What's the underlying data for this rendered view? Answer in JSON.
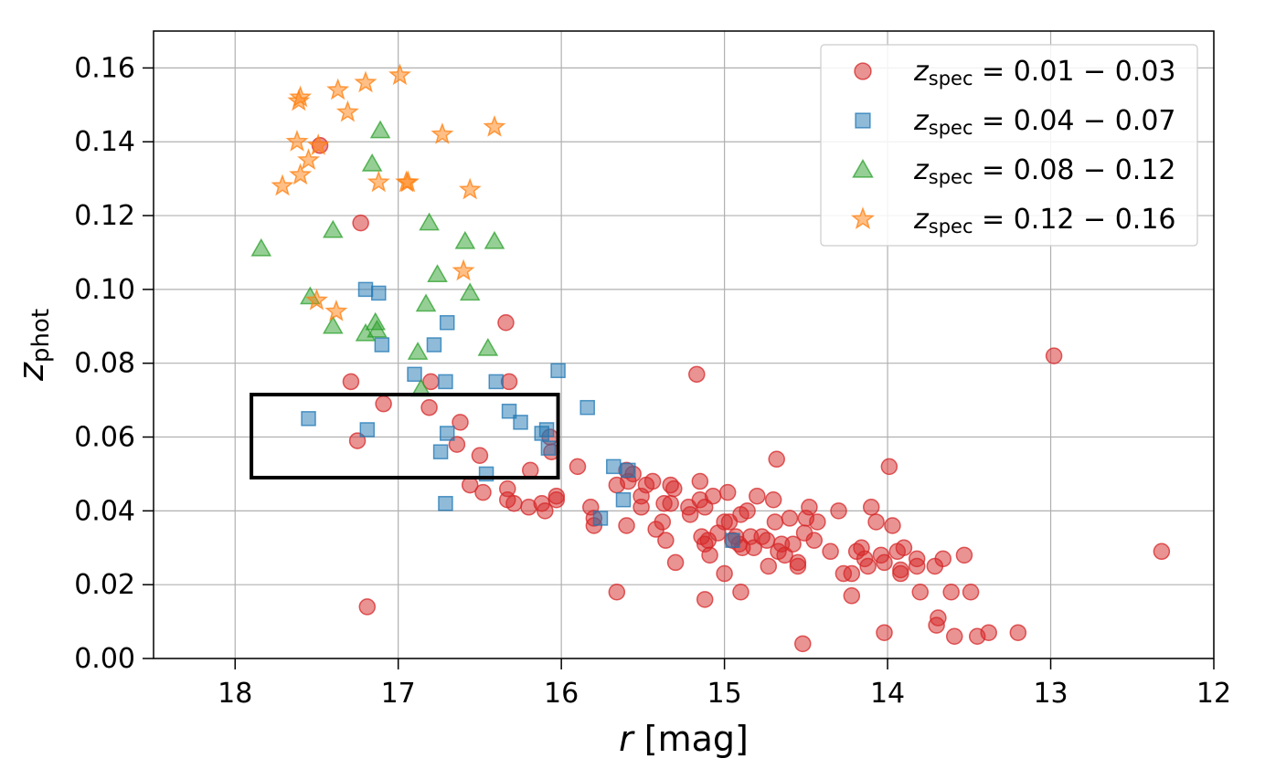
{
  "chart_data": {
    "type": "scatter",
    "xlabel_var": "r",
    "xlabel_unit": "[mag]",
    "ylabel_var": "z",
    "ylabel_sub": "phot",
    "xlim": [
      18.5,
      12
    ],
    "ylim": [
      0,
      0.17
    ],
    "x_inverted": true,
    "grid": true,
    "legend_position": "top-right",
    "xticks": [
      "18",
      "17",
      "16",
      "15",
      "14",
      "13",
      "12"
    ],
    "yticks": [
      "0.00",
      "0.02",
      "0.04",
      "0.06",
      "0.08",
      "0.10",
      "0.12",
      "0.14",
      "0.16"
    ],
    "highlight_box": {
      "x0": 17.9,
      "x1": 16.02,
      "y0": 0.049,
      "y1": 0.0715
    },
    "series": [
      {
        "name_var": "z",
        "name_sub": "spec",
        "name_range": " = 0.01 − 0.03",
        "marker": "circle",
        "color": "#d62728",
        "points": [
          [
            17.23,
            0.118
          ],
          [
            17.48,
            0.139
          ],
          [
            16.34,
            0.091
          ],
          [
            17.29,
            0.075
          ],
          [
            16.32,
            0.075
          ],
          [
            16.8,
            0.075
          ],
          [
            17.09,
            0.069
          ],
          [
            16.81,
            0.068
          ],
          [
            16.62,
            0.064
          ],
          [
            17.25,
            0.059
          ],
          [
            16.64,
            0.058
          ],
          [
            16.5,
            0.055
          ],
          [
            16.07,
            0.06
          ],
          [
            16.06,
            0.056
          ],
          [
            16.56,
            0.047
          ],
          [
            16.48,
            0.045
          ],
          [
            16.19,
            0.051
          ],
          [
            16.33,
            0.046
          ],
          [
            16.29,
            0.042
          ],
          [
            16.33,
            0.043
          ],
          [
            16.2,
            0.041
          ],
          [
            16.12,
            0.042
          ],
          [
            16.1,
            0.04
          ],
          [
            16.03,
            0.044
          ],
          [
            16.03,
            0.043
          ],
          [
            17.19,
            0.014
          ],
          [
            15.9,
            0.052
          ],
          [
            15.66,
            0.047
          ],
          [
            15.59,
            0.048
          ],
          [
            15.6,
            0.051
          ],
          [
            15.48,
            0.047
          ],
          [
            15.51,
            0.044
          ],
          [
            15.51,
            0.041
          ],
          [
            15.44,
            0.048
          ],
          [
            15.31,
            0.046
          ],
          [
            15.37,
            0.042
          ],
          [
            15.38,
            0.037
          ],
          [
            15.36,
            0.032
          ],
          [
            15.42,
            0.035
          ],
          [
            15.33,
            0.047
          ],
          [
            15.33,
            0.042
          ],
          [
            15.3,
            0.026
          ],
          [
            15.22,
            0.041
          ],
          [
            15.21,
            0.039
          ],
          [
            15.15,
            0.043
          ],
          [
            15.15,
            0.048
          ],
          [
            15.12,
            0.041
          ],
          [
            15.14,
            0.033
          ],
          [
            15.12,
            0.031
          ],
          [
            15.09,
            0.028
          ],
          [
            15.07,
            0.044
          ],
          [
            15.04,
            0.034
          ],
          [
            15.0,
            0.037
          ],
          [
            14.98,
            0.045
          ],
          [
            14.97,
            0.037
          ],
          [
            14.95,
            0.032
          ],
          [
            14.93,
            0.033
          ],
          [
            14.91,
            0.031
          ],
          [
            14.89,
            0.03
          ],
          [
            14.9,
            0.039
          ],
          [
            14.86,
            0.04
          ],
          [
            14.84,
            0.033
          ],
          [
            14.82,
            0.03
          ],
          [
            14.8,
            0.044
          ],
          [
            14.77,
            0.033
          ],
          [
            14.74,
            0.032
          ],
          [
            14.73,
            0.025
          ],
          [
            14.7,
            0.043
          ],
          [
            14.69,
            0.037
          ],
          [
            14.67,
            0.029
          ],
          [
            14.65,
            0.031
          ],
          [
            14.63,
            0.028
          ],
          [
            14.6,
            0.038
          ],
          [
            14.58,
            0.031
          ],
          [
            14.55,
            0.026
          ],
          [
            14.55,
            0.025
          ],
          [
            14.51,
            0.034
          ],
          [
            14.5,
            0.038
          ],
          [
            14.48,
            0.041
          ],
          [
            14.45,
            0.032
          ],
          [
            14.43,
            0.037
          ],
          [
            14.35,
            0.029
          ],
          [
            14.3,
            0.04
          ],
          [
            14.27,
            0.023
          ],
          [
            14.22,
            0.023
          ],
          [
            14.22,
            0.017
          ],
          [
            14.19,
            0.029
          ],
          [
            14.16,
            0.03
          ],
          [
            14.14,
            0.027
          ],
          [
            14.12,
            0.025
          ],
          [
            14.1,
            0.041
          ],
          [
            14.07,
            0.037
          ],
          [
            14.04,
            0.028
          ],
          [
            14.02,
            0.026
          ],
          [
            13.99,
            0.052
          ],
          [
            13.97,
            0.036
          ],
          [
            13.94,
            0.029
          ],
          [
            13.92,
            0.023
          ],
          [
            13.92,
            0.024
          ],
          [
            13.9,
            0.03
          ],
          [
            13.82,
            0.027
          ],
          [
            13.82,
            0.025
          ],
          [
            13.8,
            0.018
          ],
          [
            13.71,
            0.025
          ],
          [
            13.69,
            0.011
          ],
          [
            13.7,
            0.009
          ],
          [
            13.66,
            0.027
          ],
          [
            13.61,
            0.018
          ],
          [
            13.59,
            0.006
          ],
          [
            13.53,
            0.028
          ],
          [
            13.49,
            0.018
          ],
          [
            13.45,
            0.006
          ],
          [
            13.38,
            0.007
          ],
          [
            13.2,
            0.007
          ],
          [
            15.82,
            0.041
          ],
          [
            15.8,
            0.038
          ],
          [
            15.8,
            0.036
          ],
          [
            15.66,
            0.018
          ],
          [
            15.6,
            0.036
          ],
          [
            15.56,
            0.05
          ],
          [
            15.17,
            0.077
          ],
          [
            15.12,
            0.016
          ],
          [
            15.1,
            0.032
          ],
          [
            15.0,
            0.023
          ],
          [
            14.9,
            0.018
          ],
          [
            14.68,
            0.054
          ],
          [
            14.52,
            0.004
          ],
          [
            14.02,
            0.007
          ],
          [
            12.98,
            0.082
          ],
          [
            12.32,
            0.029
          ]
        ]
      },
      {
        "name_var": "z",
        "name_sub": "spec",
        "name_range": " = 0.04 − 0.07",
        "marker": "square",
        "color": "#1f77b4",
        "points": [
          [
            17.2,
            0.1
          ],
          [
            17.12,
            0.099
          ],
          [
            16.7,
            0.091
          ],
          [
            17.1,
            0.085
          ],
          [
            16.78,
            0.085
          ],
          [
            16.9,
            0.077
          ],
          [
            16.71,
            0.075
          ],
          [
            16.4,
            0.075
          ],
          [
            16.02,
            0.078
          ],
          [
            17.55,
            0.065
          ],
          [
            17.19,
            0.062
          ],
          [
            16.7,
            0.061
          ],
          [
            16.74,
            0.056
          ],
          [
            16.32,
            0.067
          ],
          [
            16.25,
            0.064
          ],
          [
            16.12,
            0.061
          ],
          [
            16.09,
            0.062
          ],
          [
            16.46,
            0.05
          ],
          [
            16.08,
            0.057
          ],
          [
            15.84,
            0.068
          ],
          [
            15.68,
            0.052
          ],
          [
            15.59,
            0.051
          ],
          [
            16.71,
            0.042
          ],
          [
            15.62,
            0.043
          ],
          [
            15.76,
            0.038
          ],
          [
            14.95,
            0.032
          ]
        ]
      },
      {
        "name_var": "z",
        "name_sub": "spec",
        "name_range": " = 0.08 − 0.12",
        "marker": "triangle",
        "color": "#2ca02c",
        "points": [
          [
            17.84,
            0.111
          ],
          [
            17.4,
            0.116
          ],
          [
            17.11,
            0.143
          ],
          [
            17.16,
            0.134
          ],
          [
            16.81,
            0.118
          ],
          [
            16.59,
            0.113
          ],
          [
            16.41,
            0.113
          ],
          [
            16.76,
            0.104
          ],
          [
            16.56,
            0.099
          ],
          [
            17.54,
            0.098
          ],
          [
            16.83,
            0.096
          ],
          [
            17.14,
            0.091
          ],
          [
            17.2,
            0.088
          ],
          [
            17.13,
            0.089
          ],
          [
            17.4,
            0.09
          ],
          [
            16.88,
            0.083
          ],
          [
            16.45,
            0.084
          ],
          [
            16.86,
            0.073
          ]
        ]
      },
      {
        "name_var": "z",
        "name_sub": "spec",
        "name_range": " = 0.12 − 0.16",
        "marker": "star",
        "color": "#ff7f0e",
        "points": [
          [
            17.6,
            0.152
          ],
          [
            17.61,
            0.151
          ],
          [
            17.37,
            0.154
          ],
          [
            17.2,
            0.156
          ],
          [
            16.99,
            0.158
          ],
          [
            17.31,
            0.148
          ],
          [
            16.41,
            0.144
          ],
          [
            16.73,
            0.142
          ],
          [
            17.62,
            0.14
          ],
          [
            17.49,
            0.139
          ],
          [
            17.55,
            0.135
          ],
          [
            17.6,
            0.131
          ],
          [
            17.71,
            0.128
          ],
          [
            17.12,
            0.129
          ],
          [
            16.95,
            0.129
          ],
          [
            16.94,
            0.129
          ],
          [
            16.56,
            0.127
          ],
          [
            16.6,
            0.105
          ],
          [
            17.5,
            0.097
          ],
          [
            17.38,
            0.094
          ]
        ]
      }
    ]
  }
}
